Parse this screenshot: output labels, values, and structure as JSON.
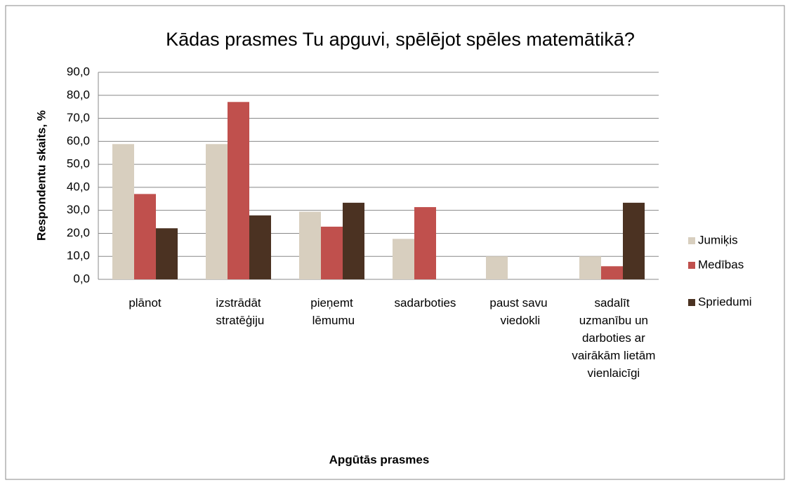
{
  "chart_data": {
    "type": "bar",
    "title": "Kādas prasmes Tu apguvi, spēlējot spēles matemātikā?",
    "x_label": "Apgūtās prasmes",
    "y_label": "Respondentu skaits, %",
    "categories": [
      "plānot",
      "izstrādāt stratēģiju",
      "pieņemt lēmumu",
      "sadarboties",
      "paust savu viedokli",
      "sadalīt uzmanību un darboties ar vairākām lietām vienlaicīgi"
    ],
    "series": [
      {
        "name": "Jumiķis",
        "color": "#d8cfbf",
        "values": [
          58.8,
          58.8,
          29.4,
          17.6,
          10.0,
          10.0
        ]
      },
      {
        "name": "Medības",
        "color": "#c0504d",
        "values": [
          37.1,
          77.1,
          22.9,
          31.4,
          0,
          5.7
        ]
      },
      {
        "name": "Spriedumi",
        "color": "#4b3222",
        "values": [
          22.2,
          27.8,
          33.3,
          0,
          0,
          33.3
        ]
      }
    ],
    "ylim": [
      0,
      90
    ],
    "yticks": [
      {
        "value": 0,
        "label": "0,0"
      },
      {
        "value": 10,
        "label": "10,0"
      },
      {
        "value": 20,
        "label": "20,0"
      },
      {
        "value": 30,
        "label": "30,0"
      },
      {
        "value": 40,
        "label": "40,0"
      },
      {
        "value": 50,
        "label": "50,0"
      },
      {
        "value": 60,
        "label": "60,0"
      },
      {
        "value": 70,
        "label": "70,0"
      },
      {
        "value": 80,
        "label": "80,0"
      },
      {
        "value": 90,
        "label": "90,0"
      }
    ],
    "grid": true,
    "legend": "right"
  }
}
